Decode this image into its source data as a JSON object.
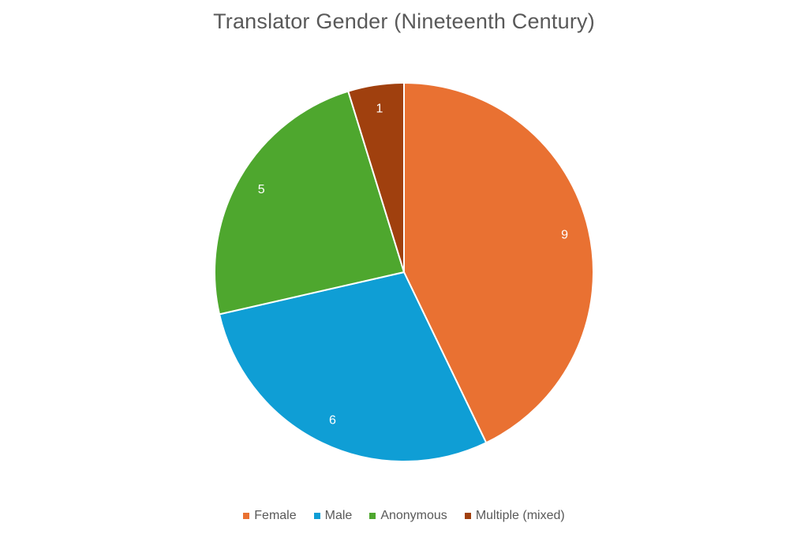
{
  "chart_data": {
    "type": "pie",
    "title": "Translator Gender (Nineteenth Century)",
    "slices": [
      {
        "name": "Female",
        "value": 9,
        "color": "#E97132"
      },
      {
        "name": "Male",
        "value": 6,
        "color": "#0F9ED5"
      },
      {
        "name": "Anonymous",
        "value": 5,
        "color": "#4EA72E"
      },
      {
        "name": "Multiple (mixed)",
        "value": 1,
        "color": "#A0400E"
      }
    ],
    "data_labels": true,
    "start_angle": "12 o'clock",
    "direction": "clockwise",
    "legend_position": "bottom"
  }
}
